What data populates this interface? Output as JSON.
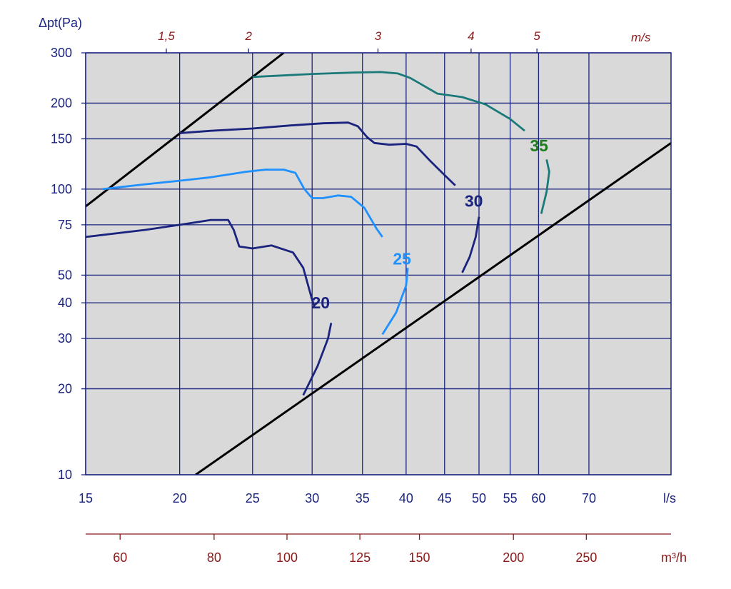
{
  "colors": {
    "plot_background": "#d9d9d9",
    "grid": "#1a237e",
    "tick_blue": "#1a237e",
    "tick_red": "#8b1a1a",
    "boundary": "#000000"
  },
  "chart_data": {
    "type": "line",
    "x_scale": "log",
    "y_scale": "log",
    "xlim": [
      15,
      90
    ],
    "ylim": [
      10,
      300
    ],
    "ylabel": "Δpt(Pa)",
    "xlabel": "l/s",
    "x_ticks": [
      15,
      20,
      25,
      30,
      35,
      40,
      45,
      50,
      55,
      60,
      70
    ],
    "y_ticks": [
      10,
      20,
      30,
      40,
      50,
      75,
      100,
      150,
      200,
      300
    ],
    "top_axis": {
      "unit": "m/s",
      "ticks": [
        {
          "label": "1,5",
          "x": 19.2
        },
        {
          "label": "2",
          "x": 24.7
        },
        {
          "label": "3",
          "x": 36.7
        },
        {
          "label": "4",
          "x": 48.8
        },
        {
          "label": "5",
          "x": 59.7
        }
      ]
    },
    "bottom_axis2": {
      "unit": "m³/h",
      "ticks": [
        {
          "label": "60",
          "value": 60
        },
        {
          "label": "80",
          "value": 80
        },
        {
          "label": "100",
          "value": 100
        },
        {
          "label": "125",
          "value": 125
        },
        {
          "label": "150",
          "value": 150
        },
        {
          "label": "200",
          "value": 200
        },
        {
          "label": "250",
          "value": 250
        }
      ]
    },
    "grid": true,
    "boundary_lines": [
      {
        "points": [
          [
            15,
            87
          ],
          [
            27.5,
            300
          ]
        ]
      },
      {
        "points": [
          [
            21,
            10
          ],
          [
            90,
            145
          ]
        ]
      }
    ],
    "series": [
      {
        "name": "20",
        "color": "#1a237e",
        "label_at": [
          30.8,
          40
        ],
        "points": [
          [
            15,
            68
          ],
          [
            18,
            72
          ],
          [
            20,
            75
          ],
          [
            22,
            78
          ],
          [
            23.2,
            78
          ],
          [
            23.6,
            72
          ],
          [
            24,
            63
          ],
          [
            25,
            62
          ],
          [
            26.5,
            63.5
          ],
          [
            28.3,
            60
          ],
          [
            29.2,
            53
          ],
          [
            30,
            41
          ],
          [
            30.2,
            39
          ]
        ],
        "tail": [
          [
            31.8,
            34
          ],
          [
            31.5,
            30
          ],
          [
            30.5,
            24
          ],
          [
            29.2,
            19
          ]
        ]
      },
      {
        "name": "25",
        "color": "#1e90ff",
        "label_at": [
          39.5,
          57
        ],
        "points": [
          [
            15.8,
            100
          ],
          [
            18,
            104
          ],
          [
            20,
            107
          ],
          [
            22,
            110
          ],
          [
            24.5,
            115
          ],
          [
            26,
            117
          ],
          [
            27.5,
            117
          ],
          [
            28.5,
            114
          ],
          [
            29.3,
            100
          ],
          [
            30,
            93
          ],
          [
            31,
            93
          ],
          [
            32.5,
            95
          ],
          [
            33.8,
            94
          ],
          [
            35.2,
            86
          ],
          [
            36.5,
            73
          ],
          [
            37.2,
            68
          ]
        ],
        "tail": [
          [
            40.2,
            53
          ],
          [
            40,
            46
          ],
          [
            38.8,
            37
          ],
          [
            37.2,
            31
          ]
        ]
      },
      {
        "name": "30",
        "color": "#1a237e",
        "label_at": [
          49.2,
          91
        ],
        "points": [
          [
            20,
            157
          ],
          [
            22,
            160
          ],
          [
            25,
            163
          ],
          [
            28,
            167
          ],
          [
            31,
            170
          ],
          [
            33.5,
            171
          ],
          [
            34.5,
            166
          ],
          [
            35.5,
            152
          ],
          [
            36.3,
            145
          ],
          [
            38,
            143
          ],
          [
            40,
            144
          ],
          [
            41.3,
            141
          ],
          [
            43,
            126
          ],
          [
            45,
            112
          ],
          [
            46.5,
            103
          ]
        ],
        "tail": [
          [
            50,
            80
          ],
          [
            49.5,
            68
          ],
          [
            48.6,
            58
          ],
          [
            47.5,
            51
          ]
        ]
      },
      {
        "name": "35",
        "color": "#1a7a7a",
        "label_color": "#1e7b1e",
        "label_at": [
          60.1,
          142
        ],
        "points": [
          [
            25,
            247
          ],
          [
            30,
            253
          ],
          [
            34,
            256
          ],
          [
            37,
            257
          ],
          [
            39,
            254
          ],
          [
            40.5,
            245
          ],
          [
            42,
            232
          ],
          [
            44,
            216
          ],
          [
            47.5,
            210
          ],
          [
            51,
            198
          ],
          [
            55,
            176
          ],
          [
            57.5,
            160
          ]
        ],
        "tail": [
          [
            61.5,
            127
          ],
          [
            62,
            115
          ],
          [
            61.5,
            98
          ],
          [
            60.5,
            82
          ]
        ]
      }
    ]
  }
}
